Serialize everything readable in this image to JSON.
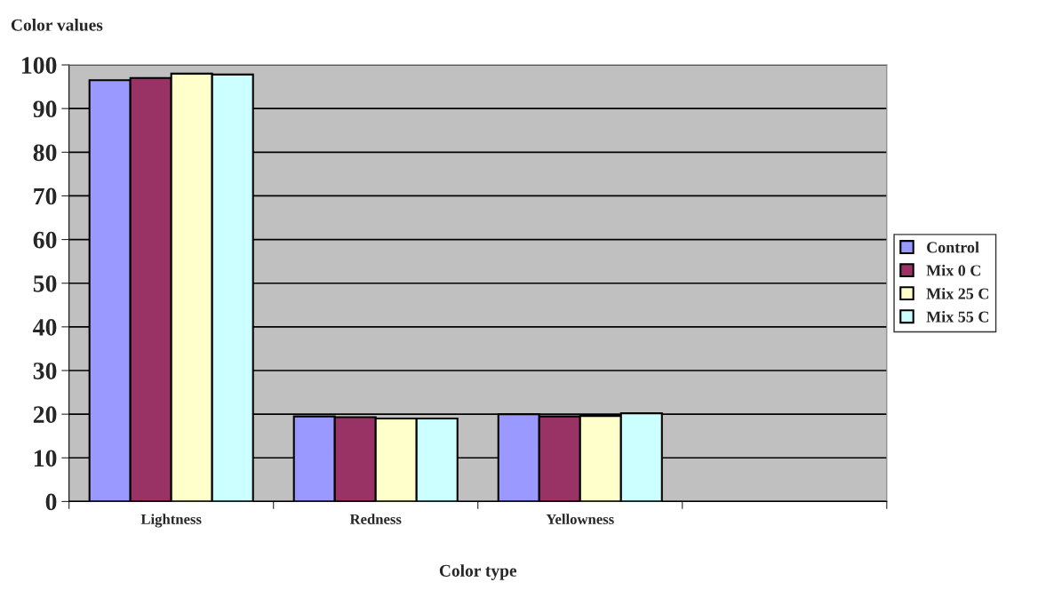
{
  "chart_data": {
    "type": "bar",
    "ylabel": "Color values",
    "xlabel": "Color type",
    "categories": [
      "Lightness",
      "Redness",
      "Yellowness",
      null
    ],
    "series": [
      {
        "name": "Control",
        "color": "#9999ff",
        "values": [
          96.5,
          19.5,
          20,
          null
        ]
      },
      {
        "name": "Mix 0 C",
        "color": "#993366",
        "values": [
          97,
          19.3,
          19.5,
          null
        ]
      },
      {
        "name": "Mix 25 C",
        "color": "#ffffcc",
        "values": [
          98,
          19,
          19.6,
          null
        ]
      },
      {
        "name": "Mix 55 C",
        "color": "#ccffff",
        "values": [
          97.8,
          19,
          20.2,
          null
        ]
      }
    ],
    "ylim": [
      0,
      100
    ],
    "yticks": [
      0,
      10,
      20,
      30,
      40,
      50,
      60,
      70,
      80,
      90,
      100
    ],
    "grid": "y",
    "legend": "right"
  }
}
